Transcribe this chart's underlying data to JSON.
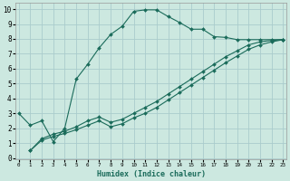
{
  "xlabel": "Humidex (Indice chaleur)",
  "x_ticks": [
    0,
    1,
    2,
    3,
    4,
    5,
    6,
    7,
    8,
    9,
    10,
    11,
    12,
    13,
    14,
    15,
    16,
    17,
    18,
    19,
    20,
    21,
    22,
    23
  ],
  "y_ticks": [
    0,
    1,
    2,
    3,
    4,
    5,
    6,
    7,
    8,
    9,
    10
  ],
  "xlim": [
    -0.3,
    23.3
  ],
  "ylim": [
    -0.1,
    10.4
  ],
  "background_color": "#cce8e0",
  "grid_color": "#aacccc",
  "line_color": "#1a6b5a",
  "line1_x": [
    0,
    1,
    2,
    3,
    4,
    5,
    6,
    7,
    8,
    9,
    10,
    11,
    12,
    13,
    14,
    15,
    16,
    17,
    18,
    19,
    20,
    21,
    22,
    23
  ],
  "line1_y": [
    3.0,
    2.2,
    2.5,
    1.1,
    2.0,
    5.3,
    6.3,
    7.4,
    8.3,
    8.85,
    9.85,
    9.95,
    9.95,
    9.5,
    9.1,
    8.65,
    8.65,
    8.15,
    8.1,
    7.95,
    7.95,
    7.95,
    7.95,
    7.95
  ],
  "line2_x": [
    1,
    2,
    3,
    4,
    5,
    6,
    7,
    8,
    9,
    10,
    11,
    12,
    13,
    14,
    15,
    16,
    17,
    18,
    19,
    20,
    21,
    22,
    23
  ],
  "line2_y": [
    0.5,
    1.3,
    1.6,
    1.8,
    2.1,
    2.5,
    2.75,
    2.4,
    2.6,
    3.0,
    3.4,
    3.8,
    4.3,
    4.8,
    5.3,
    5.8,
    6.3,
    6.8,
    7.2,
    7.6,
    7.8,
    7.9,
    7.95
  ],
  "line3_x": [
    1,
    2,
    3,
    4,
    5,
    6,
    7,
    8,
    9,
    10,
    11,
    12,
    13,
    14,
    15,
    16,
    17,
    18,
    19,
    20,
    21,
    22,
    23
  ],
  "line3_y": [
    0.5,
    1.2,
    1.45,
    1.65,
    1.9,
    2.2,
    2.5,
    2.1,
    2.3,
    2.7,
    3.0,
    3.4,
    3.9,
    4.4,
    4.9,
    5.4,
    5.9,
    6.4,
    6.85,
    7.3,
    7.6,
    7.8,
    7.95
  ]
}
